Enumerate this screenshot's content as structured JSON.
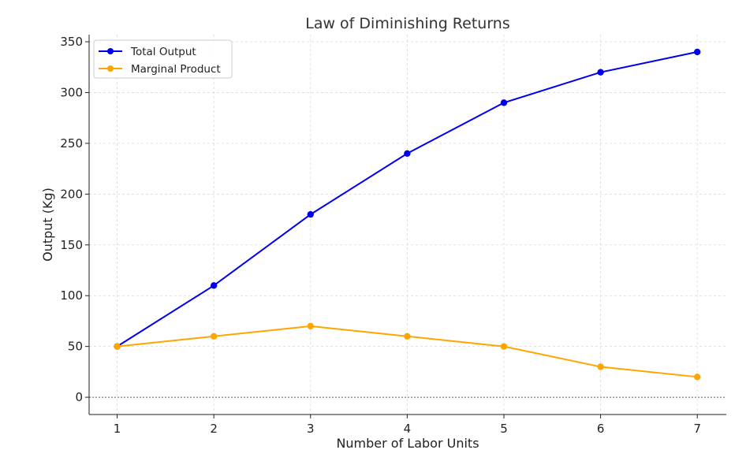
{
  "chart_data": {
    "type": "line",
    "title": "Law of Diminishing Returns",
    "xlabel": "Number of Labor Units",
    "ylabel": "Output (Kg)",
    "x": [
      1,
      2,
      3,
      4,
      5,
      6,
      7
    ],
    "xticks": [
      "1",
      "2",
      "3",
      "4",
      "5",
      "6",
      "7"
    ],
    "yticks": [
      "0",
      "50",
      "100",
      "150",
      "200",
      "250",
      "300",
      "350"
    ],
    "xlim": [
      0.71,
      7.3
    ],
    "ylim": [
      -17,
      357
    ],
    "grid": true,
    "reference_line_y": 0,
    "legend_position": "top-left",
    "series": [
      {
        "name": "Total Output",
        "color": "#0000ee",
        "values": [
          50,
          110,
          180,
          240,
          290,
          320,
          340
        ]
      },
      {
        "name": "Marginal Product",
        "color": "#ffa500",
        "values": [
          50,
          60,
          70,
          60,
          50,
          30,
          20
        ]
      }
    ]
  }
}
